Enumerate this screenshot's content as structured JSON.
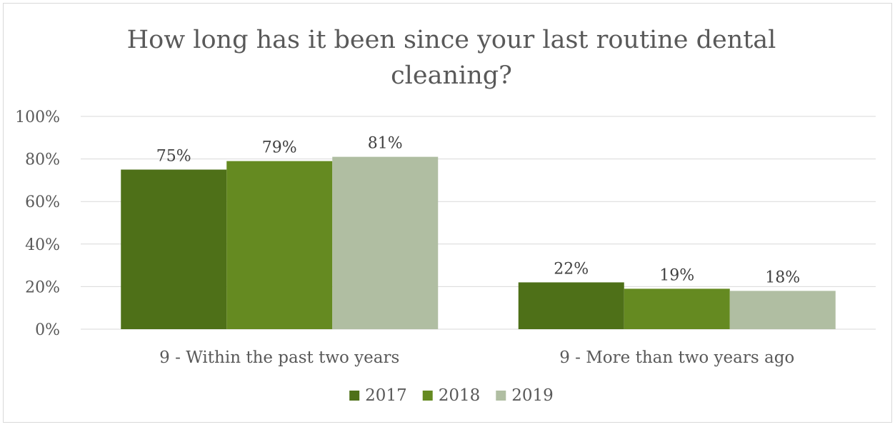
{
  "chart_data": {
    "type": "bar",
    "title_line1": "How long has it been since your last routine dental",
    "title_line2": "cleaning?",
    "categories": [
      "9 - Within the past two years",
      "9 - More than two years ago"
    ],
    "series": [
      {
        "name": "2017",
        "values": [
          75,
          22
        ],
        "labels": [
          "75%",
          "22%"
        ],
        "color": "#4e7018"
      },
      {
        "name": "2018",
        "values": [
          79,
          19
        ],
        "labels": [
          "79%",
          "19%"
        ],
        "color": "#658a21"
      },
      {
        "name": "2019",
        "values": [
          81,
          18
        ],
        "labels": [
          "81%",
          "18%"
        ],
        "color": "#b0bea2"
      }
    ],
    "y_ticks": [
      "0%",
      "20%",
      "40%",
      "60%",
      "80%",
      "100%"
    ],
    "ylim": [
      0,
      100
    ],
    "xlabel": "",
    "ylabel": "",
    "grid": true,
    "legend": "bottom"
  }
}
